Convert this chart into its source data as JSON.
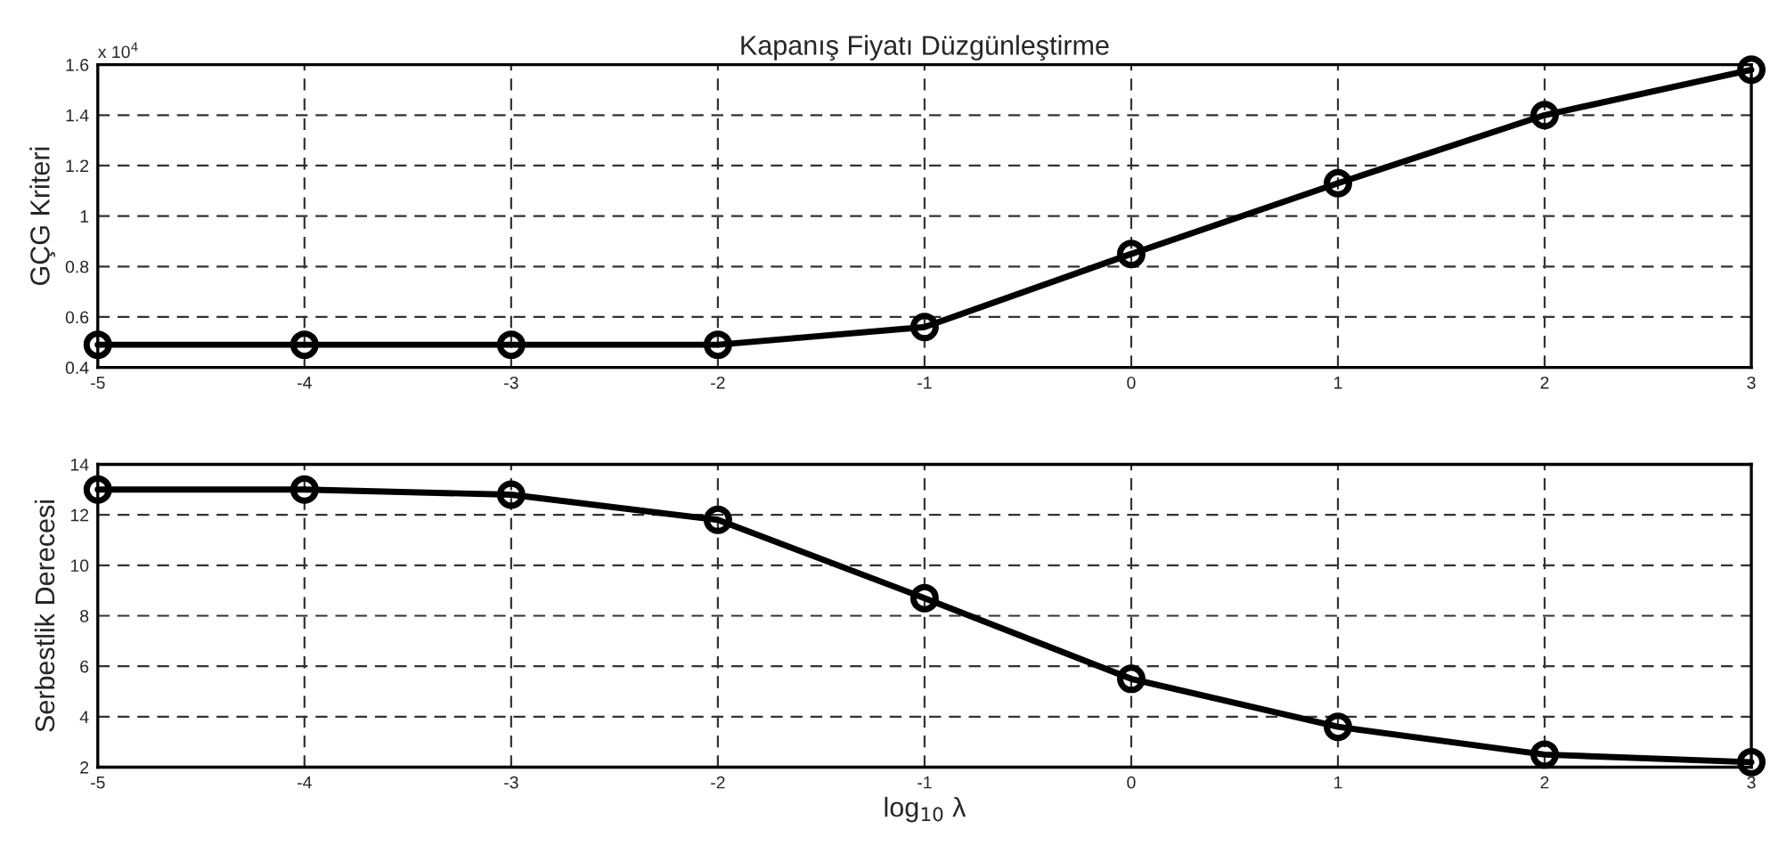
{
  "chart_data": [
    {
      "type": "line",
      "title": "Kapanış Fiyatı Düzgünleştirme",
      "ylabel": "GÇG Kriteri",
      "annotations": [
        "x 10$^{4}$"
      ],
      "x": [
        -5,
        -4,
        -3,
        -2,
        -1,
        0,
        1,
        2,
        3
      ],
      "series": [
        {
          "color": "#000000",
          "values": [
            0.49,
            0.49,
            0.49,
            0.49,
            0.56,
            0.85,
            1.13,
            1.4,
            1.58
          ]
        }
      ],
      "xlim": [
        -5,
        3
      ],
      "xticks": [
        -5,
        -4,
        -3,
        -2,
        -1,
        0,
        1,
        2,
        3
      ],
      "ylim": [
        0.4,
        1.6
      ],
      "yticks": [
        0.4,
        0.6,
        0.8,
        1,
        1.2,
        1.4,
        1.6
      ],
      "grid": true,
      "marker": "circle",
      "line_style": "solid"
    },
    {
      "type": "line",
      "xlabel": "log$_{10}$ λ",
      "ylabel": "Serbestlik Derecesi",
      "x": [
        -5,
        -4,
        -3,
        -2,
        -1,
        0,
        1,
        2,
        3
      ],
      "series": [
        {
          "color": "#000000",
          "values": [
            13.0,
            13.0,
            12.8,
            11.8,
            8.7,
            5.5,
            3.6,
            2.5,
            2.2
          ]
        }
      ],
      "xlim": [
        -5,
        3
      ],
      "xticks": [
        -5,
        -4,
        -3,
        -2,
        -1,
        0,
        1,
        2,
        3
      ],
      "ylim": [
        2,
        14
      ],
      "yticks": [
        2,
        4,
        6,
        8,
        10,
        12,
        14
      ],
      "grid": true,
      "marker": "circle",
      "line_style": "solid"
    }
  ]
}
